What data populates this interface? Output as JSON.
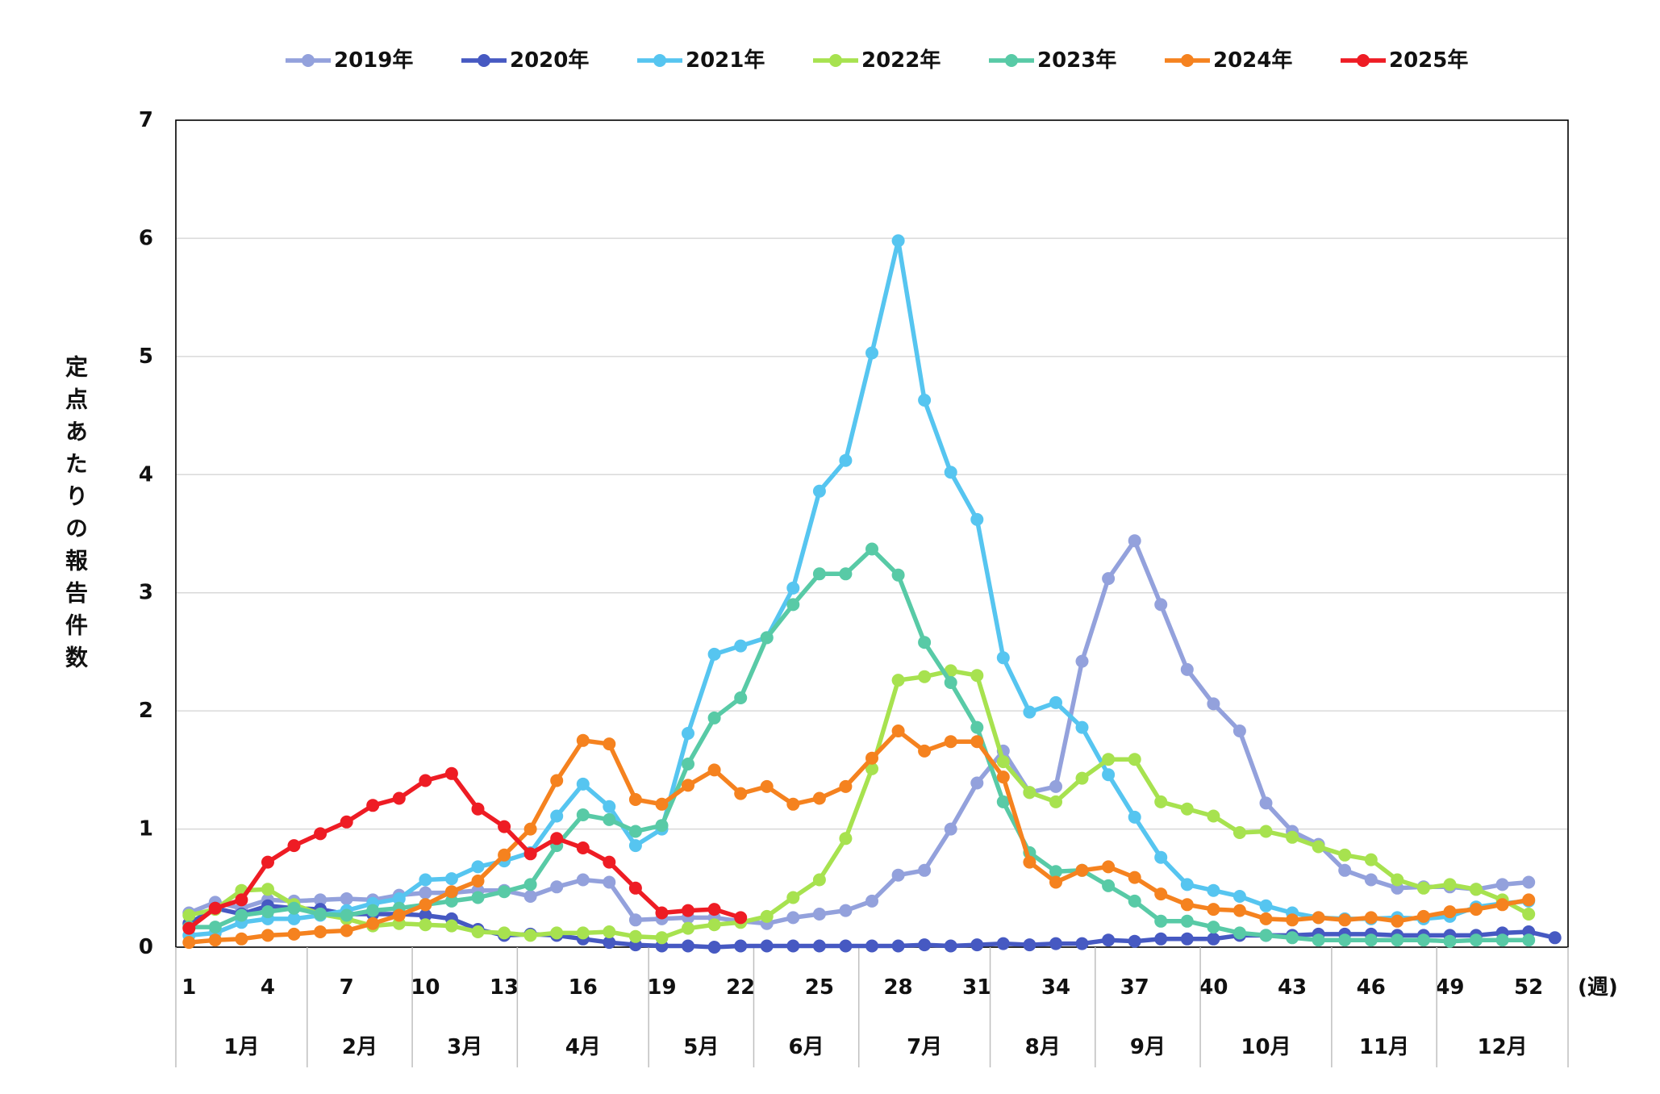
{
  "chart_data": {
    "type": "line",
    "title": "",
    "xlabel": "(週)",
    "ylabel": "定点あたりの報告件数",
    "xlim": [
      0.5,
      53.5
    ],
    "ylim": [
      0,
      7
    ],
    "yticks": [
      0,
      1,
      2,
      3,
      4,
      5,
      6,
      7
    ],
    "xticks": [
      "1",
      "4",
      "7",
      "10",
      "13",
      "16",
      "19",
      "22",
      "25",
      "28",
      "31",
      "34",
      "37",
      "40",
      "43",
      "46",
      "49",
      "52"
    ],
    "x": [
      1,
      2,
      3,
      4,
      5,
      6,
      7,
      8,
      9,
      10,
      11,
      12,
      13,
      14,
      15,
      16,
      17,
      18,
      19,
      20,
      21,
      22,
      23,
      24,
      25,
      26,
      27,
      28,
      29,
      30,
      31,
      32,
      33,
      34,
      35,
      36,
      37,
      38,
      39,
      40,
      41,
      42,
      43,
      44,
      45,
      46,
      47,
      48,
      49,
      50,
      51,
      52,
      53
    ],
    "months": [
      {
        "label": "1月",
        "start": 0.5,
        "end": 5.5
      },
      {
        "label": "2月",
        "start": 5.5,
        "end": 9.5
      },
      {
        "label": "3月",
        "start": 9.5,
        "end": 13.5
      },
      {
        "label": "4月",
        "start": 13.5,
        "end": 18.5
      },
      {
        "label": "5月",
        "start": 18.5,
        "end": 22.5
      },
      {
        "label": "6月",
        "start": 22.5,
        "end": 26.5
      },
      {
        "label": "7月",
        "start": 26.5,
        "end": 31.5
      },
      {
        "label": "8月",
        "start": 31.5,
        "end": 35.5
      },
      {
        "label": "9月",
        "start": 35.5,
        "end": 39.5
      },
      {
        "label": "10月",
        "start": 39.5,
        "end": 44.5
      },
      {
        "label": "11月",
        "start": 44.5,
        "end": 48.5
      },
      {
        "label": "12月",
        "start": 48.5,
        "end": 53.5
      }
    ],
    "grid": true,
    "legend_position": "top",
    "grid_color": "#d9d9d9",
    "separator_color": "#bfbfbf",
    "axis_color": "#000000",
    "series": [
      {
        "name": "2019年",
        "color": "#93A1DC",
        "values": [
          0.29,
          0.38,
          0.33,
          0.4,
          0.39,
          0.4,
          0.41,
          0.4,
          0.44,
          0.46,
          0.46,
          0.48,
          0.48,
          0.43,
          0.51,
          0.57,
          0.55,
          0.23,
          0.24,
          0.25,
          0.25,
          0.22,
          0.2,
          0.25,
          0.28,
          0.31,
          0.39,
          0.61,
          0.65,
          1.0,
          1.39,
          1.66,
          1.31,
          1.36,
          2.42,
          3.12,
          3.44,
          2.9,
          2.35,
          2.06,
          1.83,
          1.22,
          0.98,
          0.87,
          0.65,
          0.57,
          0.5,
          0.51,
          0.51,
          0.49,
          0.53,
          0.55,
          null
        ]
      },
      {
        "name": "2020年",
        "color": "#4659C2",
        "values": [
          0.2,
          0.33,
          0.28,
          0.35,
          0.33,
          0.32,
          0.28,
          0.28,
          0.28,
          0.27,
          0.24,
          0.15,
          0.1,
          0.11,
          0.1,
          0.07,
          0.04,
          0.02,
          0.01,
          0.01,
          0.0,
          0.01,
          0.01,
          0.01,
          0.01,
          0.01,
          0.01,
          0.01,
          0.02,
          0.01,
          0.02,
          0.03,
          0.02,
          0.03,
          0.03,
          0.06,
          0.05,
          0.07,
          0.07,
          0.07,
          0.1,
          0.1,
          0.1,
          0.11,
          0.11,
          0.11,
          0.1,
          0.1,
          0.1,
          0.1,
          0.12,
          0.13,
          0.08
        ]
      },
      {
        "name": "2021年",
        "color": "#56C5F0",
        "values": [
          0.1,
          0.12,
          0.21,
          0.24,
          0.24,
          0.27,
          0.31,
          0.37,
          0.41,
          0.57,
          0.58,
          0.68,
          0.73,
          0.8,
          1.11,
          1.38,
          1.19,
          0.86,
          1.0,
          1.81,
          2.48,
          2.55,
          2.62,
          3.04,
          3.86,
          4.12,
          5.03,
          5.98,
          4.63,
          4.02,
          3.62,
          2.45,
          1.99,
          2.07,
          1.86,
          1.46,
          1.1,
          0.76,
          0.53,
          0.48,
          0.43,
          0.35,
          0.29,
          0.25,
          0.24,
          0.24,
          0.25,
          0.24,
          0.26,
          0.34,
          0.37,
          0.39,
          null
        ]
      },
      {
        "name": "2022年",
        "color": "#A7E24F",
        "values": [
          0.27,
          0.32,
          0.48,
          0.49,
          0.36,
          0.28,
          0.24,
          0.18,
          0.2,
          0.19,
          0.18,
          0.13,
          0.12,
          0.1,
          0.12,
          0.12,
          0.13,
          0.09,
          0.08,
          0.16,
          0.19,
          0.21,
          0.26,
          0.42,
          0.57,
          0.92,
          1.51,
          2.26,
          2.29,
          2.34,
          2.3,
          1.57,
          1.31,
          1.23,
          1.43,
          1.59,
          1.59,
          1.23,
          1.17,
          1.11,
          0.97,
          0.98,
          0.93,
          0.85,
          0.78,
          0.74,
          0.57,
          0.5,
          0.53,
          0.49,
          0.4,
          0.28,
          null
        ]
      },
      {
        "name": "2023年",
        "color": "#58CAA6",
        "values": [
          0.17,
          0.17,
          0.27,
          0.3,
          0.33,
          0.28,
          0.27,
          0.31,
          0.33,
          0.36,
          0.39,
          0.42,
          0.47,
          0.53,
          0.86,
          1.12,
          1.08,
          0.98,
          1.03,
          1.55,
          1.94,
          2.11,
          2.62,
          2.9,
          3.16,
          3.16,
          3.37,
          3.15,
          2.58,
          2.24,
          1.86,
          1.23,
          0.8,
          0.64,
          0.65,
          0.52,
          0.39,
          0.22,
          0.22,
          0.17,
          0.12,
          0.1,
          0.08,
          0.06,
          0.06,
          0.06,
          0.06,
          0.06,
          0.05,
          0.06,
          0.06,
          0.06,
          null
        ]
      },
      {
        "name": "2024年",
        "color": "#F5821F",
        "values": [
          0.04,
          0.06,
          0.07,
          0.1,
          0.11,
          0.13,
          0.14,
          0.2,
          0.27,
          0.36,
          0.47,
          0.56,
          0.78,
          1.0,
          1.41,
          1.75,
          1.72,
          1.25,
          1.21,
          1.37,
          1.5,
          1.3,
          1.36,
          1.21,
          1.26,
          1.36,
          1.6,
          1.83,
          1.66,
          1.74,
          1.74,
          1.44,
          0.72,
          0.55,
          0.65,
          0.68,
          0.59,
          0.45,
          0.36,
          0.32,
          0.31,
          0.24,
          0.23,
          0.25,
          0.23,
          0.25,
          0.22,
          0.26,
          0.3,
          0.32,
          0.36,
          0.4,
          null
        ]
      },
      {
        "name": "2025年",
        "color": "#EE1C24",
        "values": [
          0.16,
          0.33,
          0.4,
          0.72,
          0.86,
          0.96,
          1.06,
          1.2,
          1.26,
          1.41,
          1.47,
          1.17,
          1.02,
          0.79,
          0.92,
          0.84,
          0.72,
          0.5,
          0.29,
          0.31,
          0.32,
          0.25,
          null,
          null,
          null,
          null,
          null,
          null,
          null,
          null,
          null,
          null,
          null,
          null,
          null,
          null,
          null,
          null,
          null,
          null,
          null,
          null,
          null,
          null,
          null,
          null,
          null,
          null,
          null,
          null,
          null,
          null,
          null
        ]
      }
    ]
  }
}
